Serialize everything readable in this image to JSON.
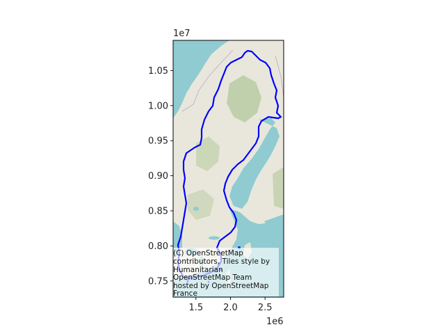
{
  "axes": {
    "x_exponent": "1e6",
    "y_exponent": "1e7",
    "x_ticks": [
      {
        "value": 1500000,
        "label": "1.5"
      },
      {
        "value": 2000000,
        "label": "2.0"
      },
      {
        "value": 2500000,
        "label": "2.5"
      }
    ],
    "y_ticks": [
      {
        "value": 7500000,
        "label": "0.75"
      },
      {
        "value": 8000000,
        "label": "0.80"
      },
      {
        "value": 8500000,
        "label": "0.85"
      },
      {
        "value": 9000000,
        "label": "0.90"
      },
      {
        "value": 9500000,
        "label": "0.95"
      },
      {
        "value": 10000000,
        "label": "1.00"
      },
      {
        "value": 10500000,
        "label": "1.05"
      }
    ],
    "xlim": [
      1170000,
      2770000
    ],
    "ylim": [
      7270000,
      10930000
    ]
  },
  "map": {
    "basemap": "OpenStreetMap Humanitarian tiles",
    "boundary_color": "#0000ff",
    "water_color": "#8fcbd1",
    "land_color": "#e6e6d8",
    "forest_color": "#b8c9a1"
  },
  "attribution": {
    "lines": [
      "(C) OpenStreetMap",
      "contributors, Tiles style by",
      "Humanitarian",
      "OpenStreetMap Team",
      "hosted by OpenStreetMap",
      "France"
    ]
  }
}
